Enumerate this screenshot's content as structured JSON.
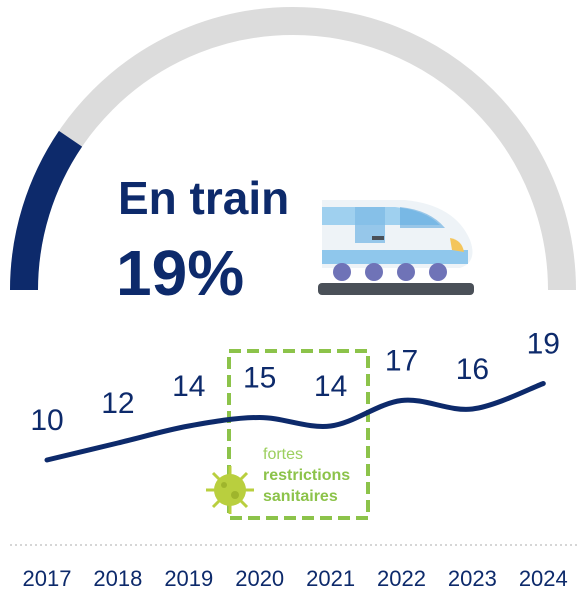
{
  "chart_data": {
    "type": "line",
    "title": "En train",
    "gauge_value": 19,
    "gauge_label": "19%",
    "categories": [
      "2017",
      "2018",
      "2019",
      "2020",
      "2021",
      "2022",
      "2023",
      "2024"
    ],
    "values": [
      10,
      12,
      14,
      15,
      14,
      17,
      16,
      19
    ],
    "color": "#0d2a6b",
    "annotation": [
      "fortes",
      "restrictions",
      "sanitaires"
    ]
  }
}
